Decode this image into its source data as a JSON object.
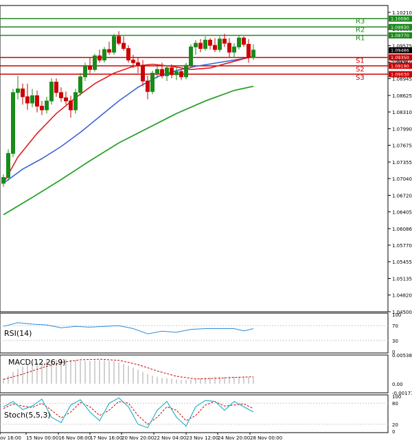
{
  "chart_data": {
    "type": "candlestick",
    "main": {
      "y_ticks": [
        "1.10210",
        "1.09895",
        "1.09575",
        "1.09260",
        "1.08945",
        "1.08625",
        "1.08310",
        "1.07990",
        "1.07675",
        "1.07355",
        "1.07040",
        "1.06720",
        "1.06405",
        "1.06086",
        "1.05770",
        "1.05455",
        "1.05135",
        "1.04820",
        "1.04500"
      ],
      "y_range": [
        1.045,
        1.1034
      ],
      "current_price": "1.09486",
      "levels": [
        {
          "label": "R3",
          "value": 1.1009,
          "text": "1.10090",
          "color": "#1a8a1a"
        },
        {
          "label": "R2",
          "value": 1.0993,
          "text": "1.09930",
          "color": "#1a8a1a"
        },
        {
          "label": "R1",
          "value": 1.0977,
          "text": "1.09770",
          "color": "#1a8a1a"
        },
        {
          "label": "S1",
          "value": 1.0935,
          "text": "1.09350",
          "color": "#cc0000"
        },
        {
          "label": "S2",
          "value": 1.0919,
          "text": "1.09190",
          "color": "#cc0000"
        },
        {
          "label": "S3",
          "value": 1.0903,
          "text": "1.09030",
          "color": "#cc0000"
        }
      ],
      "extra_tag": "1.09150",
      "candles": [
        [
          1.0695,
          1.0712,
          1.0688,
          1.0706
        ],
        [
          1.0706,
          1.076,
          1.07,
          1.0752
        ],
        [
          1.0752,
          1.0875,
          1.0745,
          1.0868
        ],
        [
          1.0868,
          1.09,
          1.0855,
          1.0875
        ],
        [
          1.0875,
          1.0885,
          1.0845,
          1.086
        ],
        [
          1.086,
          1.0885,
          1.0835,
          1.0848
        ],
        [
          1.0848,
          1.0875,
          1.084,
          1.0862
        ],
        [
          1.0862,
          1.0872,
          1.083,
          1.0842
        ],
        [
          1.0842,
          1.0852,
          1.0825,
          1.0835
        ],
        [
          1.0835,
          1.086,
          1.0828,
          1.0852
        ],
        [
          1.0852,
          1.0895,
          1.0845,
          1.0888
        ],
        [
          1.0888,
          1.0895,
          1.086,
          1.0868
        ],
        [
          1.0868,
          1.0878,
          1.085,
          1.0858
        ],
        [
          1.0858,
          1.087,
          1.0845,
          1.0852
        ],
        [
          1.0852,
          1.0862,
          1.082,
          1.0835
        ],
        [
          1.0835,
          1.0875,
          1.0828,
          1.0868
        ],
        [
          1.0868,
          1.0905,
          1.0862,
          1.0898
        ],
        [
          1.0898,
          1.0925,
          1.089,
          1.0918
        ],
        [
          1.0918,
          1.0935,
          1.0905,
          1.0912
        ],
        [
          1.0912,
          1.0942,
          1.0908,
          1.0938
        ],
        [
          1.0938,
          1.095,
          1.0925,
          1.093
        ],
        [
          1.093,
          1.0955,
          1.0925,
          1.095
        ],
        [
          1.095,
          1.0965,
          1.094,
          1.0945
        ],
        [
          1.0945,
          1.098,
          1.094,
          1.0975
        ],
        [
          1.0975,
          1.0985,
          1.0958,
          1.0962
        ],
        [
          1.0962,
          1.0975,
          1.0948,
          1.0952
        ],
        [
          1.0952,
          1.0958,
          1.0925,
          1.093
        ],
        [
          1.093,
          1.094,
          1.0915,
          1.0925
        ],
        [
          1.0925,
          1.0935,
          1.0905,
          1.092
        ],
        [
          1.092,
          1.093,
          1.088,
          1.089
        ],
        [
          1.089,
          1.09,
          1.0855,
          1.087
        ],
        [
          1.087,
          1.091,
          1.0865,
          1.0905
        ],
        [
          1.0905,
          1.0918,
          1.0895,
          1.0912
        ],
        [
          1.0912,
          1.0925,
          1.0895,
          1.09
        ],
        [
          1.09,
          1.092,
          1.089,
          1.0915
        ],
        [
          1.0915,
          1.0922,
          1.0895,
          1.0902
        ],
        [
          1.0902,
          1.0915,
          1.0892,
          1.0908
        ],
        [
          1.0908,
          1.0912,
          1.0892,
          1.0898
        ],
        [
          1.0898,
          1.0925,
          1.0893,
          1.092
        ],
        [
          1.092,
          1.096,
          1.0915,
          1.0955
        ],
        [
          1.0955,
          1.0968,
          1.094,
          1.0962
        ],
        [
          1.0962,
          1.097,
          1.0945,
          1.0952
        ],
        [
          1.0952,
          1.0975,
          1.0948,
          1.0968
        ],
        [
          1.0968,
          1.0972,
          1.095,
          1.0958
        ],
        [
          1.0958,
          1.0972,
          1.0945,
          1.095
        ],
        [
          1.095,
          1.0975,
          1.0945,
          1.097
        ],
        [
          1.097,
          1.098,
          1.0955,
          1.0962
        ],
        [
          1.0962,
          1.0972,
          1.0935,
          1.0945
        ],
        [
          1.0945,
          1.0962,
          1.0935,
          1.0955
        ],
        [
          1.0955,
          1.0978,
          1.095,
          1.0972
        ],
        [
          1.0972,
          1.0975,
          1.0955,
          1.096
        ],
        [
          1.096,
          1.097,
          1.0925,
          1.0935
        ],
        [
          1.0935,
          1.096,
          1.093,
          1.0949
        ]
      ],
      "ma_red": [
        [
          0,
          1.0695
        ],
        [
          3,
          1.0745
        ],
        [
          7,
          1.079
        ],
        [
          11,
          1.0828
        ],
        [
          15,
          1.0858
        ],
        [
          19,
          1.0885
        ],
        [
          23,
          1.0905
        ],
        [
          27,
          1.0918
        ],
        [
          31,
          1.0922
        ],
        [
          35,
          1.0918
        ],
        [
          39,
          1.0912
        ],
        [
          43,
          1.0915
        ],
        [
          47,
          1.0925
        ],
        [
          51,
          1.0935
        ],
        [
          52,
          1.0937
        ]
      ],
      "ma_blue": [
        [
          0,
          1.0695
        ],
        [
          4,
          1.0722
        ],
        [
          8,
          1.0742
        ],
        [
          12,
          1.0765
        ],
        [
          16,
          1.0792
        ],
        [
          20,
          1.0822
        ],
        [
          24,
          1.0852
        ],
        [
          28,
          1.0878
        ],
        [
          32,
          1.0898
        ],
        [
          36,
          1.091
        ],
        [
          40,
          1.0918
        ],
        [
          44,
          1.0924
        ],
        [
          48,
          1.093
        ],
        [
          52,
          1.0936
        ]
      ],
      "ma_green": [
        [
          0,
          1.0635
        ],
        [
          6,
          1.0668
        ],
        [
          12,
          1.0702
        ],
        [
          18,
          1.0738
        ],
        [
          24,
          1.0772
        ],
        [
          30,
          1.08
        ],
        [
          36,
          1.0828
        ],
        [
          42,
          1.0852
        ],
        [
          48,
          1.0872
        ],
        [
          52,
          1.088
        ]
      ]
    },
    "rsi": {
      "label": "RSI(14)",
      "ticks": [
        "100",
        "70",
        "30",
        "0"
      ],
      "values": [
        [
          0,
          68
        ],
        [
          3,
          78
        ],
        [
          6,
          74
        ],
        [
          9,
          72
        ],
        [
          12,
          64
        ],
        [
          15,
          68
        ],
        [
          18,
          66
        ],
        [
          21,
          68
        ],
        [
          24,
          70
        ],
        [
          27,
          62
        ],
        [
          30,
          48
        ],
        [
          33,
          55
        ],
        [
          36,
          52
        ],
        [
          39,
          60
        ],
        [
          42,
          62
        ],
        [
          45,
          62
        ],
        [
          48,
          62
        ],
        [
          50,
          56
        ],
        [
          52,
          62
        ]
      ]
    },
    "macd": {
      "label": "MACD(12,26,9)",
      "ticks": [
        "0.005389",
        "0.00",
        "-0.00171"
      ],
      "hist": [
        0.001,
        0.0015,
        0.0022,
        0.0028,
        0.0032,
        0.0036,
        0.0038,
        0.004,
        0.0042,
        0.0043,
        0.0044,
        0.0045,
        0.0046,
        0.0046,
        0.0045,
        0.0044,
        0.0043,
        0.0043,
        0.0043,
        0.0044,
        0.0044,
        0.0044,
        0.0043,
        0.0042,
        0.004,
        0.0037,
        0.0034,
        0.003,
        0.0026,
        0.0022,
        0.0018,
        0.0015,
        0.0013,
        0.0011,
        0.001,
        0.0009,
        0.0008,
        0.0007,
        0.0007,
        0.0008,
        0.0009,
        0.001,
        0.0011,
        0.0012,
        0.0013,
        0.0013,
        0.0013,
        0.0013,
        0.0013,
        0.0013,
        0.0013,
        0.0012,
        0.0012
      ],
      "signal": [
        [
          0,
          0.0008
        ],
        [
          4,
          0.0018
        ],
        [
          8,
          0.003
        ],
        [
          12,
          0.004
        ],
        [
          16,
          0.0045
        ],
        [
          20,
          0.0046
        ],
        [
          24,
          0.0044
        ],
        [
          28,
          0.0036
        ],
        [
          32,
          0.0024
        ],
        [
          36,
          0.0014
        ],
        [
          40,
          0.0009
        ],
        [
          44,
          0.001
        ],
        [
          48,
          0.0012
        ],
        [
          52,
          0.0013
        ]
      ]
    },
    "stoch": {
      "label": "Stoch(5,5,3)",
      "ticks": [
        "100",
        "80",
        "20",
        "0"
      ],
      "k": [
        [
          0,
          70
        ],
        [
          2,
          85
        ],
        [
          4,
          62
        ],
        [
          6,
          72
        ],
        [
          8,
          92
        ],
        [
          10,
          40
        ],
        [
          12,
          25
        ],
        [
          14,
          75
        ],
        [
          16,
          90
        ],
        [
          18,
          55
        ],
        [
          20,
          30
        ],
        [
          22,
          80
        ],
        [
          24,
          95
        ],
        [
          26,
          70
        ],
        [
          28,
          20
        ],
        [
          30,
          10
        ],
        [
          32,
          60
        ],
        [
          34,
          85
        ],
        [
          36,
          40
        ],
        [
          38,
          15
        ],
        [
          40,
          70
        ],
        [
          42,
          88
        ],
        [
          44,
          85
        ],
        [
          46,
          60
        ],
        [
          48,
          85
        ],
        [
          50,
          70
        ],
        [
          52,
          55
        ]
      ],
      "d": [
        [
          0,
          65
        ],
        [
          2,
          78
        ],
        [
          4,
          72
        ],
        [
          6,
          68
        ],
        [
          8,
          80
        ],
        [
          10,
          60
        ],
        [
          12,
          38
        ],
        [
          14,
          55
        ],
        [
          16,
          82
        ],
        [
          18,
          70
        ],
        [
          20,
          45
        ],
        [
          22,
          60
        ],
        [
          24,
          85
        ],
        [
          26,
          80
        ],
        [
          28,
          45
        ],
        [
          30,
          20
        ],
        [
          32,
          40
        ],
        [
          34,
          70
        ],
        [
          36,
          60
        ],
        [
          38,
          30
        ],
        [
          40,
          45
        ],
        [
          42,
          75
        ],
        [
          44,
          85
        ],
        [
          46,
          72
        ],
        [
          48,
          75
        ],
        [
          50,
          78
        ],
        [
          52,
          65
        ]
      ]
    },
    "x_labels": [
      "ov 16:00",
      "15 Nov 00:00",
      "16 Nov 08:00",
      "17 Nov 16:00",
      "20 Nov 20:00",
      "22 Nov 04:00",
      "23 Nov 12:00",
      "24 Nov 20:00",
      "28 Nov 00:00"
    ],
    "colors": {
      "bull": "#1a8a1a",
      "bear": "#cc0000",
      "ma_red": "#e31a1c",
      "ma_blue": "#3a62d6",
      "ma_green": "#2ca02c",
      "rsi": "#2e8bd8",
      "macd_hist": "#bdbdbd",
      "macd_signal": "#cc0000",
      "stoch_k": "#2ab5c7",
      "stoch_d": "#cc0000"
    }
  }
}
